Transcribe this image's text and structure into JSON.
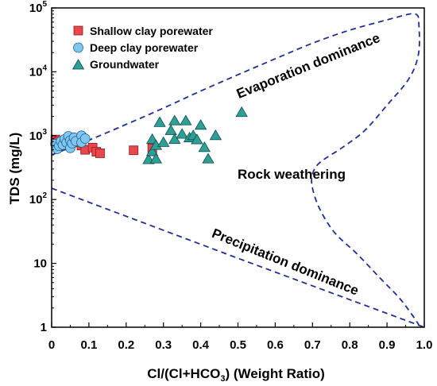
{
  "chart_data": {
    "type": "scatter",
    "title": "",
    "xlabel": "Cl/(Cl+HCO3) (Weight Ratio)",
    "xlabel_main": "Cl/(Cl+HCO",
    "xlabel_sub": "3",
    "xlabel_tail": ") (Weight Ratio)",
    "ylabel": "TDS (mg/L)",
    "xlim": [
      0,
      1.0
    ],
    "ylim": [
      1,
      100000
    ],
    "yscale": "log",
    "grid": false,
    "legend_position": "top-left",
    "x_tick_labels": [
      "0",
      "0.1",
      "0.2",
      "0.3",
      "0.4",
      "0.5",
      "0.6",
      "0.7",
      "0.8",
      "0.9",
      "1.0"
    ],
    "x_tick_values": [
      0,
      0.1,
      0.2,
      0.3,
      0.4,
      0.5,
      0.6,
      0.7,
      0.8,
      0.9,
      1.0
    ],
    "y_tick_values": [
      1,
      10,
      100,
      1000,
      10000,
      100000
    ],
    "y_tick_labels": [
      {
        "base": "1",
        "exp": ""
      },
      {
        "base": "10",
        "exp": ""
      },
      {
        "base": "10",
        "exp": "2"
      },
      {
        "base": "10",
        "exp": "3"
      },
      {
        "base": "10",
        "exp": "4"
      },
      {
        "base": "10",
        "exp": "5"
      }
    ],
    "annotations": [
      "Evaporation dominance",
      "Rock weathering",
      "Precipitation dominance"
    ],
    "series": [
      {
        "name": "Shallow clay porewater",
        "marker": "square",
        "color": "#e8474e",
        "points": [
          [
            0.01,
            870
          ],
          [
            0.02,
            820
          ],
          [
            0.03,
            760
          ],
          [
            0.04,
            720
          ],
          [
            0.05,
            880
          ],
          [
            0.07,
            780
          ],
          [
            0.08,
            700
          ],
          [
            0.09,
            600
          ],
          [
            0.11,
            650
          ],
          [
            0.12,
            560
          ],
          [
            0.13,
            530
          ],
          [
            0.22,
            590
          ],
          [
            0.27,
            630
          ]
        ]
      },
      {
        "name": "Deep clay porewater",
        "marker": "circle",
        "color": "#7ec8f0",
        "points": [
          [
            0.01,
            740
          ],
          [
            0.015,
            620
          ],
          [
            0.02,
            690
          ],
          [
            0.025,
            820
          ],
          [
            0.03,
            720
          ],
          [
            0.035,
            880
          ],
          [
            0.04,
            780
          ],
          [
            0.045,
            980
          ],
          [
            0.05,
            840
          ],
          [
            0.05,
            640
          ],
          [
            0.055,
            760
          ],
          [
            0.06,
            930
          ],
          [
            0.065,
            820
          ],
          [
            0.08,
            1000
          ],
          [
            0.08,
            780
          ],
          [
            0.09,
            900
          ]
        ]
      },
      {
        "name": "Groundwater",
        "marker": "triangle",
        "color": "#2e9f96",
        "points": [
          [
            0.26,
            420
          ],
          [
            0.27,
            560
          ],
          [
            0.27,
            870
          ],
          [
            0.28,
            430
          ],
          [
            0.28,
            700
          ],
          [
            0.29,
            1600
          ],
          [
            0.3,
            780
          ],
          [
            0.32,
            1200
          ],
          [
            0.33,
            1700
          ],
          [
            0.33,
            870
          ],
          [
            0.35,
            1050
          ],
          [
            0.36,
            1700
          ],
          [
            0.37,
            920
          ],
          [
            0.38,
            1000
          ],
          [
            0.39,
            860
          ],
          [
            0.4,
            1450
          ],
          [
            0.41,
            650
          ],
          [
            0.42,
            430
          ],
          [
            0.44,
            1000
          ],
          [
            0.51,
            2300
          ]
        ]
      }
    ],
    "boundary_lines": [
      {
        "name": "upper-boundary",
        "points": [
          [
            0.0,
            500
          ],
          [
            0.1,
            850
          ],
          [
            0.2,
            1500
          ],
          [
            0.3,
            2700
          ],
          [
            0.4,
            5000
          ],
          [
            0.5,
            9000
          ],
          [
            0.6,
            16000
          ],
          [
            0.7,
            28000
          ],
          [
            0.8,
            45000
          ],
          [
            0.9,
            65000
          ],
          [
            0.96,
            80000
          ],
          [
            0.98,
            78000
          ],
          [
            0.985,
            60000
          ],
          [
            0.985,
            20000
          ],
          [
            0.96,
            8000
          ],
          [
            0.9,
            3000
          ],
          [
            0.84,
            1200
          ],
          [
            0.78,
            650
          ],
          [
            0.72,
            380
          ],
          [
            0.7,
            250
          ],
          [
            0.7,
            150
          ],
          [
            0.72,
            70
          ],
          [
            0.76,
            30
          ],
          [
            0.82,
            14
          ],
          [
            0.88,
            6
          ],
          [
            0.93,
            3
          ],
          [
            0.96,
            1.8
          ],
          [
            0.985,
            1.1
          ]
        ]
      },
      {
        "name": "lower-boundary",
        "points": [
          [
            0.0,
            150
          ],
          [
            0.5,
            12
          ],
          [
            1.0,
            1
          ]
        ]
      }
    ]
  }
}
